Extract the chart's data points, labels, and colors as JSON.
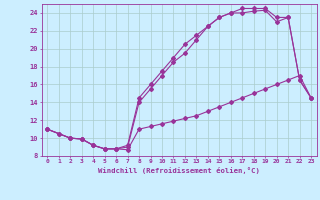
{
  "xlabel": "Windchill (Refroidissement éolien,°C)",
  "bg_color": "#cceeff",
  "line_color": "#993399",
  "grid_color": "#aadddd",
  "xlim": [
    -0.5,
    23.5
  ],
  "ylim": [
    8,
    25
  ],
  "xticks": [
    0,
    1,
    2,
    3,
    4,
    5,
    6,
    7,
    8,
    9,
    10,
    11,
    12,
    13,
    14,
    15,
    16,
    17,
    18,
    19,
    20,
    21,
    22,
    23
  ],
  "yticks": [
    8,
    10,
    12,
    14,
    16,
    18,
    20,
    22,
    24
  ],
  "curve1_x": [
    0,
    1,
    2,
    3,
    4,
    5,
    6,
    7,
    8,
    9,
    10,
    11,
    12,
    13,
    14,
    15,
    16,
    17,
    18,
    19,
    20,
    21,
    22,
    23
  ],
  "curve1_y": [
    11,
    10.5,
    10.0,
    9.9,
    9.2,
    8.8,
    8.8,
    8.7,
    11.0,
    11.3,
    11.6,
    11.9,
    12.2,
    12.5,
    13.0,
    13.5,
    14.0,
    14.5,
    15.0,
    15.5,
    16.0,
    16.5,
    17.0,
    14.5
  ],
  "curve2_x": [
    0,
    1,
    2,
    3,
    4,
    5,
    6,
    7,
    8,
    9,
    10,
    11,
    12,
    13,
    14,
    15,
    16,
    17,
    18,
    19,
    20,
    21,
    22,
    23
  ],
  "curve2_y": [
    11,
    10.5,
    10.0,
    9.9,
    9.2,
    8.8,
    8.8,
    9.2,
    14.5,
    16.0,
    17.5,
    19.0,
    20.5,
    21.5,
    22.5,
    23.5,
    24.0,
    24.0,
    24.2,
    24.3,
    23.0,
    23.5,
    16.5,
    14.5
  ],
  "curve3_x": [
    0,
    2,
    3,
    4,
    5,
    6,
    7,
    8,
    9,
    10,
    11,
    12,
    13,
    14,
    15,
    16,
    17,
    18,
    19,
    20,
    21,
    22,
    23
  ],
  "curve3_y": [
    11,
    10.0,
    9.9,
    9.2,
    8.8,
    8.8,
    9.0,
    14.0,
    15.5,
    17.0,
    18.5,
    19.5,
    21.0,
    22.5,
    23.5,
    24.0,
    24.5,
    24.5,
    24.5,
    23.5,
    23.5,
    16.5,
    14.5
  ]
}
